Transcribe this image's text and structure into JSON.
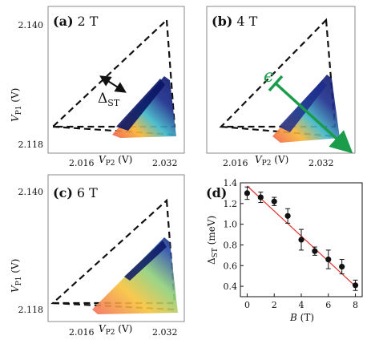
{
  "figure": {
    "panels": [
      {
        "label": "(a)",
        "field": "2 T",
        "annotation": "Δ",
        "annotation_sub": "ST"
      },
      {
        "label": "(b)",
        "field": "4 T",
        "annotation": "ϵ"
      },
      {
        "label": "(c)",
        "field": "6 T"
      },
      {
        "label": "(d)"
      }
    ],
    "density_axes": {
      "y_ticks": [
        "2.140",
        "2.118"
      ],
      "x_ticks": [
        "2.016",
        "2.032"
      ],
      "ylabel_main": "V",
      "ylabel_sub": "P1",
      "ylabel_unit": " (V)",
      "xlabel_main": "V",
      "xlabel_sub": "P2",
      "xlabel_unit": " (V)"
    },
    "colors": {
      "dashed_triangle": "#111111",
      "arrow_a": "#111111",
      "arrow_b": "#1a9c4a",
      "fit_line": "#e0302a",
      "points": "#111111"
    }
  },
  "chart_data": {
    "type": "scatter",
    "panel": "(d)",
    "x": [
      0,
      1,
      2,
      3,
      4,
      5,
      6,
      7,
      8
    ],
    "y": [
      1.3,
      1.26,
      1.22,
      1.08,
      0.85,
      0.74,
      0.66,
      0.59,
      0.41
    ],
    "err": [
      0.06,
      0.05,
      0.04,
      0.07,
      0.1,
      0.04,
      0.09,
      0.07,
      0.05
    ],
    "fit": {
      "x": [
        0,
        8
      ],
      "y": [
        1.37,
        0.4
      ]
    },
    "xlabel_main": "B",
    "xlabel_unit": " (T)",
    "ylabel_main": "Δ",
    "ylabel_sub": "ST",
    "ylabel_unit": " (meV)",
    "xlim": [
      -0.5,
      8.5
    ],
    "ylim": [
      0.3,
      1.4
    ],
    "xticks": [
      0,
      2,
      4,
      6,
      8
    ],
    "yticks": [
      0.4,
      0.6,
      0.8,
      1.0,
      1.2,
      1.4
    ],
    "xtick_labels": [
      "0",
      "2",
      "4",
      "6",
      "8"
    ],
    "ytick_labels": [
      "0.4",
      "0.6",
      "0.8",
      "1.0",
      "1.2",
      "1.4"
    ]
  }
}
